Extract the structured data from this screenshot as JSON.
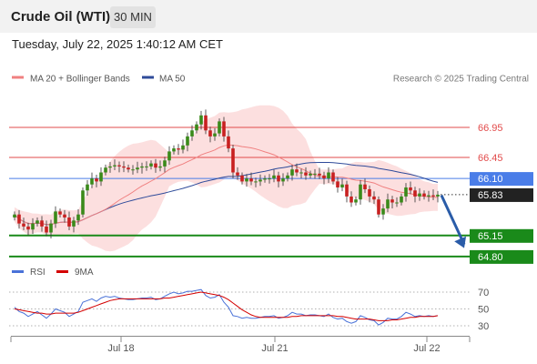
{
  "header": {
    "title": "Crude Oil (WTI)",
    "timeframe": "30 MIN",
    "datetime": "Tuesday, July 22, 2025 1:40:12 AM CET"
  },
  "legend": {
    "ma20_label": "MA 20 + Bollinger Bands",
    "ma50_label": "MA 50",
    "credit": "Research © 2025 Trading Central",
    "rsi_label": "RSI",
    "ma9_label": "9MA"
  },
  "colors": {
    "ma20": "#f08080",
    "bollinger_fill": "#fbd9d9",
    "ma50": "#2f4b9a",
    "current_price_line": "#4a7de8",
    "resistance": "#e24b4b",
    "support": "#1a8a1a",
    "candle_up": "#3a8a1a",
    "candle_down": "#c82020",
    "arrow": "#2a5ca8",
    "rsi": "#4a72d8",
    "rsi_ma": "#d40000"
  },
  "chart_data": [
    {
      "type": "candlestick",
      "title": "Crude Oil (WTI)",
      "timeframe": "30 MIN",
      "x_ticks": [
        "Jul 18",
        "Jul 21",
        "Jul 22"
      ],
      "ylim": [
        64.7,
        67.4
      ],
      "price_levels": [
        {
          "label": "66.95",
          "value": 66.95,
          "kind": "resistance"
        },
        {
          "label": "66.45",
          "value": 66.45,
          "kind": "resistance"
        },
        {
          "label": "66.10",
          "value": 66.1,
          "kind": "pivot"
        },
        {
          "label": "65.83",
          "value": 65.83,
          "kind": "last_price"
        },
        {
          "label": "65.15",
          "value": 65.15,
          "kind": "support"
        },
        {
          "label": "64.80",
          "value": 64.8,
          "kind": "support"
        }
      ],
      "arrow": {
        "from": 65.85,
        "to": 64.85,
        "direction": "down"
      },
      "close": [
        65.5,
        65.35,
        65.3,
        65.25,
        65.35,
        65.4,
        65.3,
        65.2,
        65.35,
        65.55,
        65.5,
        65.45,
        65.3,
        65.4,
        65.5,
        65.9,
        66.0,
        66.1,
        66.05,
        66.2,
        66.28,
        66.3,
        66.32,
        66.3,
        66.28,
        66.25,
        66.25,
        66.28,
        66.3,
        66.3,
        66.35,
        66.28,
        66.3,
        66.4,
        66.55,
        66.6,
        66.58,
        66.65,
        66.8,
        66.9,
        67.0,
        67.15,
        66.9,
        66.8,
        66.85,
        67.05,
        66.8,
        66.6,
        66.2,
        66.15,
        66.05,
        66.1,
        66.05,
        66.05,
        66.08,
        66.1,
        66.1,
        66.15,
        66.05,
        66.1,
        66.15,
        66.25,
        66.2,
        66.2,
        66.15,
        66.18,
        66.18,
        66.15,
        66.1,
        66.2,
        66.05,
        65.95,
        66.0,
        65.8,
        65.7,
        65.75,
        66.0,
        65.92,
        65.8,
        65.75,
        65.5,
        65.6,
        65.75,
        65.7,
        65.7,
        65.8,
        65.95,
        65.9,
        65.8,
        65.85,
        65.8,
        65.82,
        65.8,
        65.83
      ]
    },
    {
      "type": "line",
      "title": "RSI",
      "x_ticks": [
        "Jul 18",
        "Jul 21",
        "Jul 22"
      ],
      "ylim": [
        25,
        75
      ],
      "y_ticks": [
        70,
        50,
        30
      ],
      "series": [
        {
          "name": "RSI",
          "values": [
            52,
            47,
            45,
            41,
            44,
            47,
            43,
            39,
            44,
            50,
            48,
            46,
            41,
            44,
            47,
            58,
            60,
            62,
            59,
            63,
            65,
            64,
            65,
            63,
            62,
            61,
            61,
            62,
            63,
            63,
            64,
            61,
            62,
            65,
            68,
            70,
            68,
            69,
            71,
            71,
            72,
            73,
            66,
            63,
            64,
            67,
            58,
            52,
            42,
            41,
            39,
            40,
            39,
            39,
            40,
            41,
            41,
            42,
            39,
            40,
            42,
            46,
            44,
            44,
            42,
            43,
            43,
            42,
            41,
            44,
            40,
            38,
            39,
            35,
            33,
            35,
            42,
            40,
            37,
            36,
            31,
            34,
            39,
            38,
            38,
            41,
            46,
            44,
            41,
            42,
            41,
            42,
            41,
            42
          ]
        },
        {
          "name": "9MA",
          "values": [
            50,
            49,
            48,
            47,
            46,
            45,
            45,
            44,
            44,
            45,
            45,
            45,
            45,
            45,
            46,
            48,
            50,
            52,
            54,
            56,
            58,
            60,
            61,
            62,
            62,
            62,
            62,
            62,
            62,
            62,
            62,
            62,
            62,
            63,
            63,
            64,
            65,
            66,
            67,
            68,
            69,
            70,
            69,
            68,
            67,
            66,
            64,
            61,
            57,
            53,
            49,
            46,
            43,
            41,
            40,
            40,
            40,
            40,
            40,
            40,
            40,
            41,
            41,
            42,
            42,
            42,
            42,
            42,
            42,
            42,
            42,
            41,
            41,
            40,
            39,
            38,
            38,
            38,
            38,
            37,
            36,
            36,
            36,
            37,
            37,
            38,
            39,
            40,
            40,
            41,
            41,
            41,
            41,
            42
          ]
        }
      ]
    }
  ]
}
